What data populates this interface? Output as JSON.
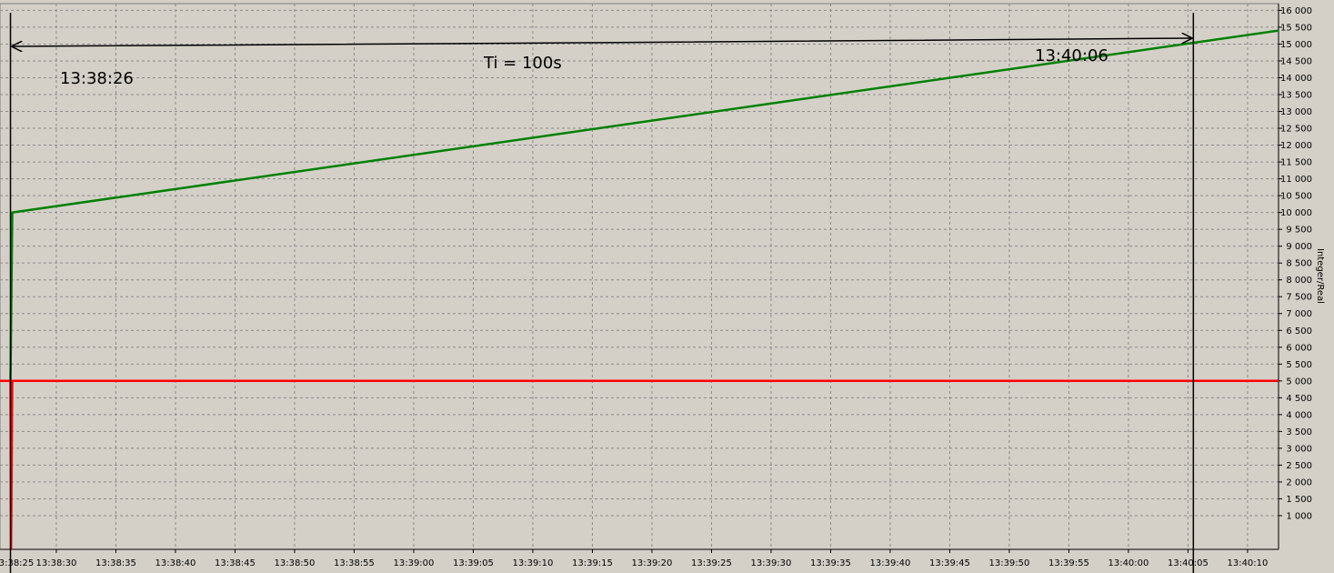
{
  "chart_data": {
    "type": "line",
    "title": "",
    "xlabel": "",
    "ylabel": "Integer/Real",
    "xlim": [
      "13:38:25.27",
      "13:40:12.60"
    ],
    "ylim": [
      0,
      16200
    ],
    "x_tick_labels": [
      "3:38:25",
      "13:38:30",
      "13:38:35",
      "13:38:40",
      "13:38:45",
      "13:38:50",
      "13:38:55",
      "13:39:00",
      "13:39:05",
      "13:39:10",
      "13:39:15",
      "13:39:20",
      "13:39:25",
      "13:39:30",
      "13:39:35",
      "13:39:40",
      "13:39:45",
      "13:39:50",
      "13:39:55",
      "13:40:00",
      "13:40:05",
      "13:40:10"
    ],
    "y_ticks": [
      1000,
      1500,
      2000,
      2500,
      3000,
      3500,
      4000,
      4500,
      5000,
      5500,
      6000,
      6500,
      7000,
      7500,
      8000,
      8500,
      9000,
      9500,
      10000,
      10500,
      11000,
      11500,
      12000,
      12500,
      13000,
      13500,
      14000,
      14500,
      15000,
      15500,
      16000
    ],
    "y_tick_labels": [
      "1 000",
      "1 500",
      "2 000",
      "2 500",
      "3 000",
      "3 500",
      "4 000",
      "4 500",
      "5 000",
      "5 500",
      "6 000",
      "6 500",
      "7 000",
      "7 500",
      "8 000",
      "8 500",
      "9 000",
      "9 500",
      "10 000",
      "10 500",
      "11 000",
      "11 500",
      "12 000",
      "12 500",
      "13 000",
      "13 500",
      "14 000",
      "14 500",
      "15 000",
      "15 500",
      "16 000"
    ],
    "grid": true,
    "series": [
      {
        "color": "#008000",
        "x": [
          "13:38:25.27",
          "13:38:26.15",
          "13:38:26.30",
          "13:40:12.60"
        ],
        "y": [
          5000,
          5000,
          10000,
          15400
        ]
      },
      {
        "color": "#ff0000",
        "x": [
          "13:38:25.27",
          "13:38:26.15",
          "13:38:26.20",
          "13:38:26.30",
          "13:40:12.60"
        ],
        "y": [
          5000,
          5000,
          0,
          5000,
          5000
        ]
      }
    ],
    "annotations": {
      "start_time": "13:38:26",
      "end_time": "13:40:06",
      "interval": "Ti = 100s",
      "cursor_start_x": "13:38:26.15",
      "cursor_end_x": "13:40:05.45"
    }
  }
}
